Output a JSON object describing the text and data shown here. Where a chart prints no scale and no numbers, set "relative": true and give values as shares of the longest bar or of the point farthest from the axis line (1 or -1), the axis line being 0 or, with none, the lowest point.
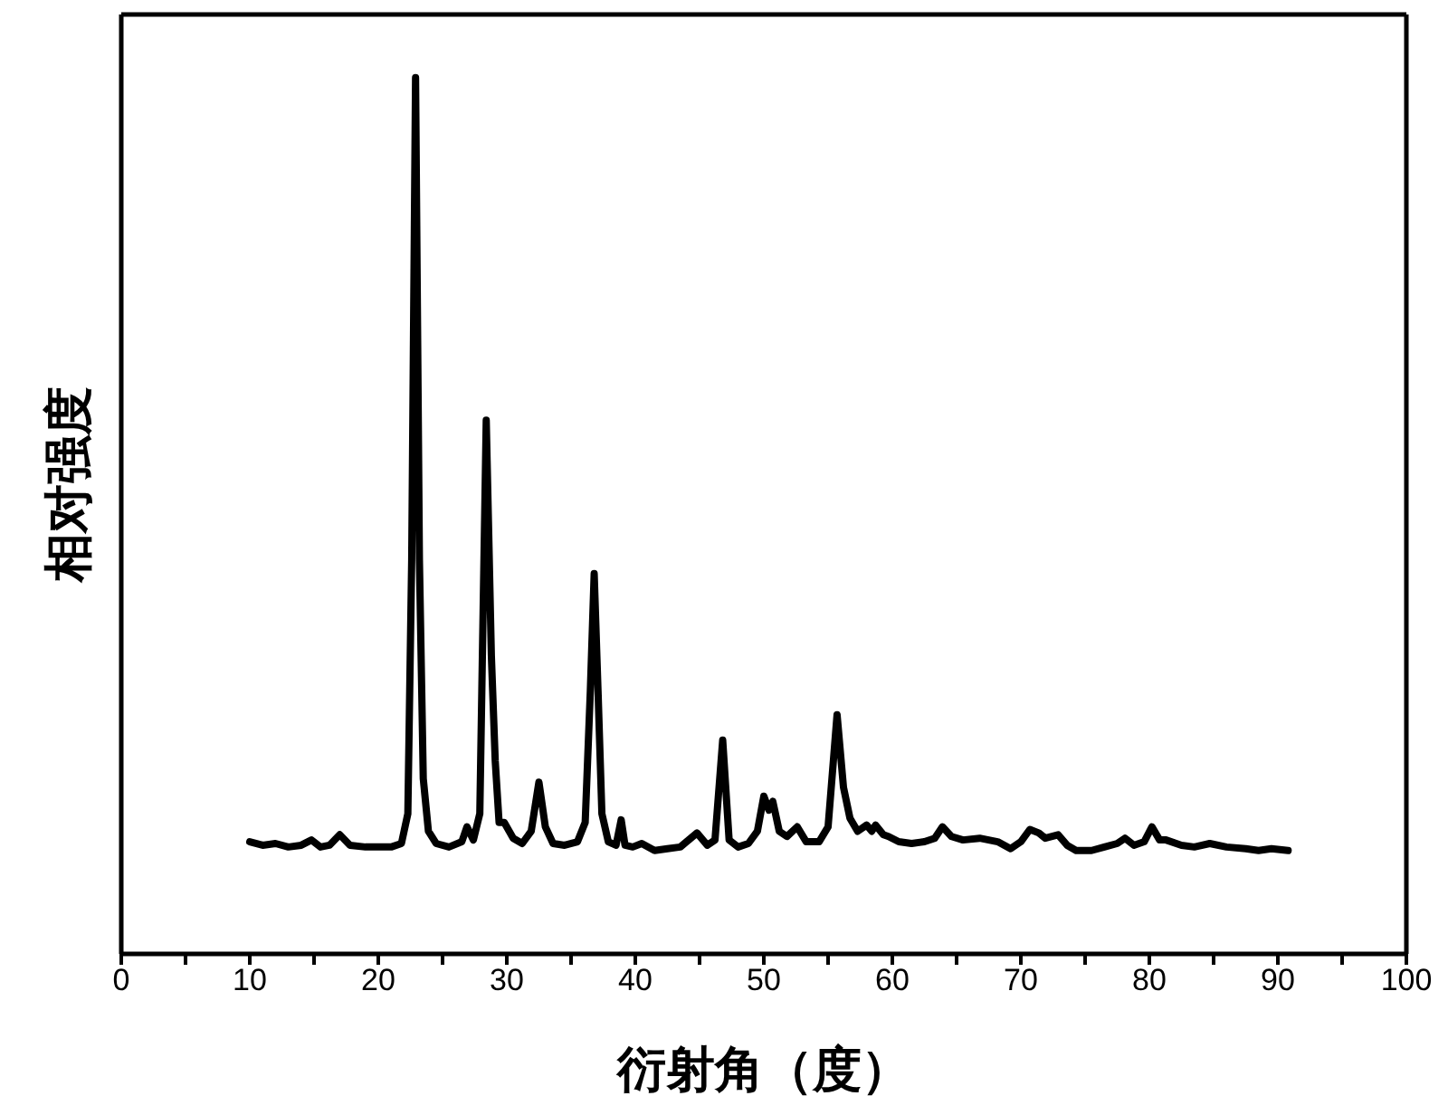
{
  "chart_data": {
    "type": "line",
    "relative": true,
    "xlabel": "衍射角（度）",
    "ylabel": "相对强度",
    "color": "#000000",
    "line_style": "solid",
    "xlim": [
      0,
      100
    ],
    "xticks": [
      0,
      {
        "value": 5,
        "label": null
      },
      10,
      {
        "value": 15,
        "label": null
      },
      20,
      {
        "value": 25,
        "label": null
      },
      30,
      {
        "value": 35,
        "label": null
      },
      40,
      {
        "value": 45,
        "label": null
      },
      50,
      {
        "value": 55,
        "label": null
      },
      60,
      {
        "value": 65,
        "label": null
      },
      70,
      {
        "value": 75,
        "label": null
      },
      80,
      {
        "value": 85,
        "label": null
      },
      90,
      {
        "value": 95,
        "label": null
      },
      100
    ],
    "x": [
      10.0,
      11.0,
      12.0,
      13.0,
      14.0,
      14.8,
      15.5,
      16.2,
      17.0,
      17.8,
      19.0,
      20.0,
      21.0,
      21.8,
      22.3,
      22.6,
      22.9,
      23.2,
      23.5,
      23.9,
      24.5,
      25.5,
      26.5,
      26.9,
      27.4,
      27.9,
      28.4,
      28.8,
      29.1,
      29.4,
      29.8,
      30.5,
      31.2,
      31.9,
      32.5,
      33.0,
      33.6,
      34.5,
      35.5,
      36.1,
      36.5,
      36.8,
      37.1,
      37.4,
      37.9,
      38.5,
      38.9,
      39.2,
      39.8,
      40.5,
      41.5,
      42.5,
      43.5,
      44.8,
      45.6,
      46.2,
      46.8,
      47.3,
      48.0,
      48.8,
      49.5,
      50.0,
      50.4,
      50.7,
      51.2,
      51.8,
      52.6,
      53.3,
      54.3,
      55.0,
      55.7,
      56.2,
      56.7,
      57.3,
      58.0,
      58.4,
      58.7,
      59.3,
      59.7,
      60.5,
      61.5,
      62.5,
      63.3,
      63.9,
      64.6,
      65.5,
      66.8,
      67.5,
      68.2,
      69.2,
      70.0,
      70.7,
      71.4,
      71.9,
      72.9,
      73.6,
      74.3,
      75.5,
      76.5,
      77.5,
      78.1,
      78.8,
      79.6,
      80.2,
      80.8,
      81.3,
      82.5,
      83.5,
      84.7,
      86.0,
      87.5,
      88.5,
      89.5,
      90.8
    ],
    "values": [
      0.128,
      0.124,
      0.126,
      0.122,
      0.124,
      0.13,
      0.122,
      0.124,
      0.136,
      0.124,
      0.122,
      0.122,
      0.122,
      0.126,
      0.16,
      0.45,
      1.0,
      0.45,
      0.2,
      0.14,
      0.126,
      0.122,
      0.128,
      0.145,
      0.13,
      0.16,
      0.609,
      0.34,
      0.22,
      0.15,
      0.15,
      0.132,
      0.126,
      0.14,
      0.196,
      0.145,
      0.126,
      0.124,
      0.128,
      0.15,
      0.3,
      0.434,
      0.3,
      0.16,
      0.128,
      0.124,
      0.153,
      0.124,
      0.122,
      0.126,
      0.118,
      0.12,
      0.122,
      0.138,
      0.124,
      0.13,
      0.244,
      0.13,
      0.122,
      0.126,
      0.14,
      0.18,
      0.164,
      0.174,
      0.14,
      0.134,
      0.145,
      0.128,
      0.128,
      0.145,
      0.273,
      0.19,
      0.155,
      0.14,
      0.147,
      0.14,
      0.147,
      0.136,
      0.134,
      0.128,
      0.126,
      0.128,
      0.132,
      0.145,
      0.134,
      0.13,
      0.132,
      0.13,
      0.128,
      0.12,
      0.128,
      0.142,
      0.138,
      0.132,
      0.136,
      0.124,
      0.118,
      0.118,
      0.122,
      0.126,
      0.132,
      0.124,
      0.128,
      0.145,
      0.13,
      0.13,
      0.124,
      0.122,
      0.126,
      0.122,
      0.12,
      0.118,
      0.12,
      0.118
    ]
  }
}
